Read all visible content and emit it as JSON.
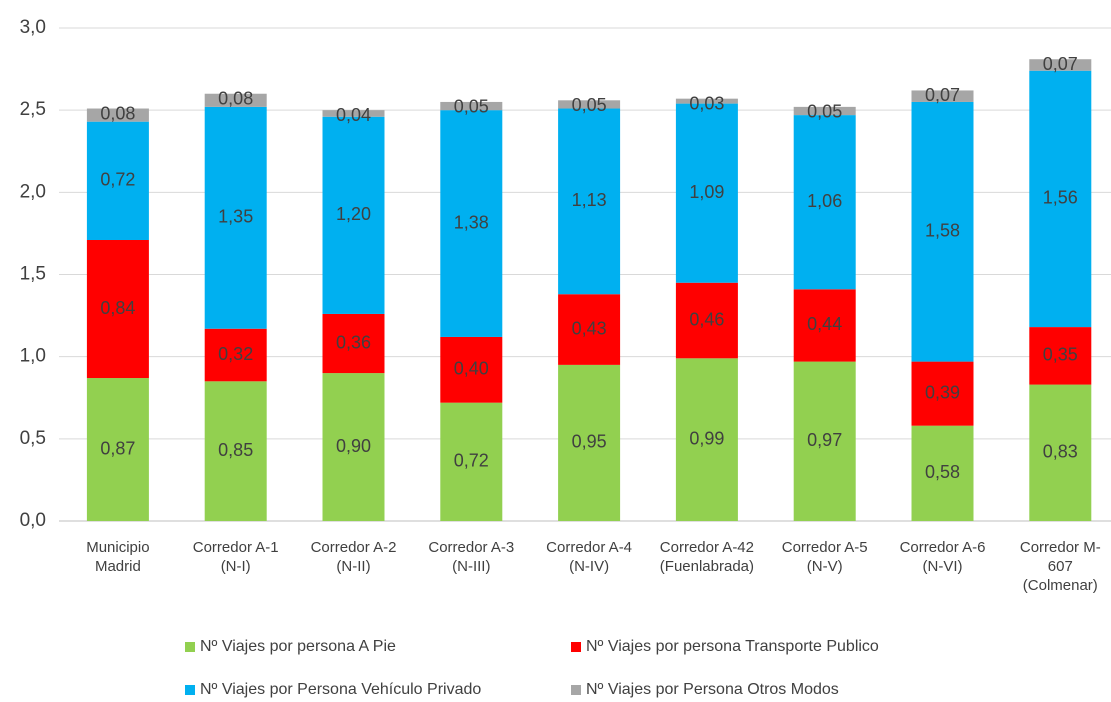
{
  "chart_data": {
    "type": "stacked_bar",
    "categories": [
      "Municipio\nMadrid",
      "Corredor A-1\n(N-I)",
      "Corredor A-2\n(N-II)",
      "Corredor A-3\n(N-III)",
      "Corredor A-4\n(N-IV)",
      "Corredor A-42\n(Fuenlabrada)",
      "Corredor A-5\n(N-V)",
      "Corredor A-6\n(N-VI)",
      "Corredor M-\n607\n(Colmenar)"
    ],
    "series": [
      {
        "name": "Nº Viajes por persona A Pie",
        "color": "#92d050",
        "values": [
          0.87,
          0.85,
          0.9,
          0.72,
          0.95,
          0.99,
          0.97,
          0.58,
          0.83
        ],
        "value_labels": [
          "0,87",
          "0,85",
          "0,90",
          "0,72",
          "0,95",
          "0,99",
          "0,97",
          "0,58",
          "0,83"
        ]
      },
      {
        "name": "Nº Viajes por persona Transporte Publico",
        "color": "#ff0000",
        "values": [
          0.84,
          0.32,
          0.36,
          0.4,
          0.43,
          0.46,
          0.44,
          0.39,
          0.35
        ],
        "value_labels": [
          "0,84",
          "0,32",
          "0,36",
          "0,40",
          "0,43",
          "0,46",
          "0,44",
          "0,39",
          "0,35"
        ]
      },
      {
        "name": "Nº Viajes por Persona Vehículo Privado",
        "color": "#00b0f0",
        "values": [
          0.72,
          1.35,
          1.2,
          1.38,
          1.13,
          1.09,
          1.06,
          1.58,
          1.56
        ],
        "value_labels": [
          "0,72",
          "1,35",
          "1,20",
          "1,38",
          "1,13",
          "1,09",
          "1,06",
          "1,58",
          "1,56"
        ]
      },
      {
        "name": "Nº Viajes por Persona Otros Modos",
        "color": "#a6a6a6",
        "values": [
          0.08,
          0.08,
          0.04,
          0.05,
          0.05,
          0.03,
          0.05,
          0.07,
          0.07
        ],
        "value_labels": [
          "0,08",
          "0,08",
          "0,04",
          "0,05",
          "0,05",
          "0,03",
          "0,05",
          "0,07",
          "0,07"
        ]
      }
    ],
    "ylim": [
      0,
      3
    ],
    "yticks": [
      {
        "value": 0,
        "label": "0,0"
      },
      {
        "value": 0.5,
        "label": "0,5"
      },
      {
        "value": 1,
        "label": "1,0"
      },
      {
        "value": 1.5,
        "label": "1,5"
      },
      {
        "value": 2,
        "label": "2,0"
      },
      {
        "value": 2.5,
        "label": "2,5"
      },
      {
        "value": 3,
        "label": "3,0"
      }
    ],
    "grid": true,
    "legend": "bottom"
  }
}
